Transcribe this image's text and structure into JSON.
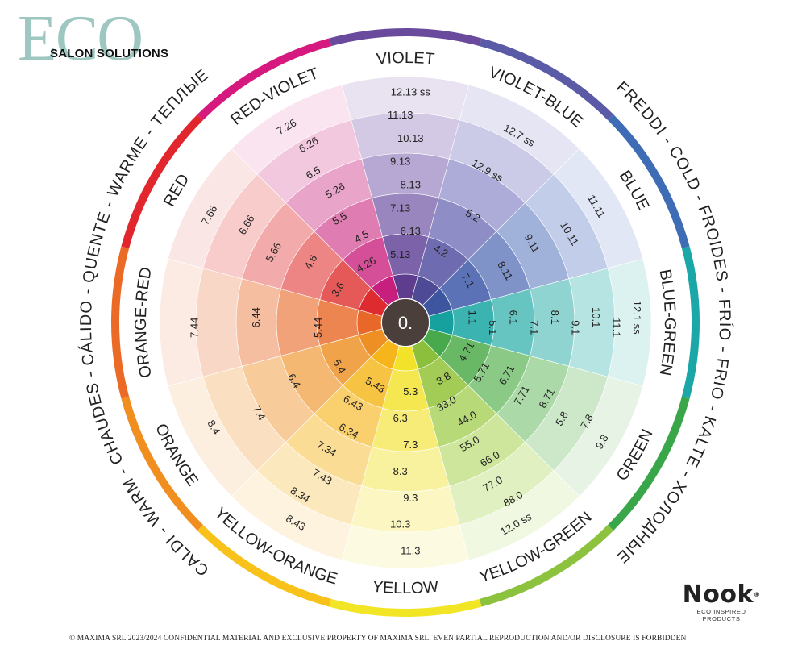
{
  "logo": {
    "main": "ECO",
    "sub": "SALON SOLUTIONS"
  },
  "brand": {
    "name": "Nook",
    "reg": "®",
    "tagline": "ECO INSPIRED PRODUCTS"
  },
  "footer": "© MAXIMA SRL  2023/2024  CONFIDENTIAL MATERIAL AND EXCLUSIVE PROPERTY OF MAXIMA SRL. EVEN PARTIAL REPRODUCTION AND/OR DISCLOSURE IS FORBIDDEN",
  "center": {
    "label": "0.",
    "color": "#4a3f3a"
  },
  "outer_text": {
    "cold": "FREDDI - COLD - FROIDES - FRÍO - FRIO - KALTE - ХОЛОДНЫЕ",
    "warm": "CALDI - WARM - CHAUDES - CÁLIDO - QUENTE - WARME - ТЕПЛЫЕ"
  },
  "segments": [
    {
      "label": "VIOLET",
      "ring": "#6a4a9c",
      "fills": [
        "#5e3d8f",
        "#7c62a8",
        "#9a86bf",
        "#b6a8d2",
        "#d3c9e4",
        "#e8e2f1"
      ],
      "codes": [
        [
          "5.13",
          "6.13",
          "7.13",
          "8.13",
          "9.13",
          "10.13",
          "11.13",
          "12.13 ss"
        ]
      ]
    },
    {
      "label": "VIOLET-BLUE",
      "ring": "#5a5aa6",
      "fills": [
        "#4e4a96",
        "#6e6bb0",
        "#8f8dc5",
        "#adacd8",
        "#cbcae7",
        "#e6e5f3"
      ],
      "codes": [
        [
          "4.2",
          "5.2",
          "12.9 ss",
          "12.7 ss"
        ]
      ]
    },
    {
      "label": "BLUE",
      "ring": "#3f6db5",
      "fills": [
        "#3e55a0",
        "#5b73b6",
        "#7f93c9",
        "#a0b1da",
        "#c2cde9",
        "#e2e7f5"
      ],
      "codes": [
        [
          "7.1",
          "8.11",
          "9.11",
          "10.11",
          "11.11"
        ]
      ]
    },
    {
      "label": "BLUE-GREEN",
      "ring": "#1ba6a8",
      "fills": [
        "#16a09e",
        "#3bb3b0",
        "#66c4c1",
        "#8fd4d1",
        "#b6e4e2",
        "#dcf2f1"
      ],
      "codes": [
        [
          "1.1",
          "5.1",
          "6.1",
          "7.1",
          "8.1",
          "9.1",
          "10.1",
          "11.1",
          "12.1 ss"
        ]
      ]
    },
    {
      "label": "GREEN",
      "ring": "#3aa64a",
      "fills": [
        "#48a84c",
        "#68b866",
        "#8bc987",
        "#acd9a8",
        "#cce8c9",
        "#e7f4e5"
      ],
      "codes": [
        [
          "4.71",
          "5.71",
          "6.71",
          "7.71",
          "8.71",
          "5.8",
          "7.8",
          "9.8"
        ]
      ]
    },
    {
      "label": "YELLOW-GREEN",
      "ring": "#8dc23f",
      "fills": [
        "#8cbf3c",
        "#a2cc55",
        "#b8d978",
        "#cde69c",
        "#e0f0c1",
        "#f0f8e2"
      ],
      "codes": [
        [
          "3.8",
          "33.0",
          "44.0",
          "55.0",
          "66.0",
          "77.0",
          "88.0",
          "12.0 ss"
        ]
      ]
    },
    {
      "label": "YELLOW",
      "ring": "#f1e526",
      "fills": [
        "#f2e22a",
        "#f4e74f",
        "#f6ec77",
        "#f8f19d",
        "#fbf6c2",
        "#fdfae2"
      ],
      "codes": [
        [
          "5.3",
          "6.3",
          "7.3",
          "8.3",
          "9.3",
          "10.3",
          "11.3"
        ]
      ]
    },
    {
      "label": "YELLOW-ORANGE",
      "ring": "#f8c21a",
      "fills": [
        "#f6b51a",
        "#f7c342",
        "#f9d06d",
        "#fadc95",
        "#fce8bd",
        "#fdf3df"
      ],
      "codes": [
        [
          "5.43",
          "6.43",
          "6.34",
          "7.34",
          "7.43",
          "8.34",
          "8.43"
        ]
      ]
    },
    {
      "label": "ORANGE",
      "ring": "#f08e1f",
      "fills": [
        "#ee8f24",
        "#f1a34a",
        "#f4b872",
        "#f7cc9a",
        "#fadfc1",
        "#fcefe0"
      ],
      "codes": [
        [
          "5.4",
          "6.4",
          "7.4",
          "8.4"
        ]
      ]
    },
    {
      "label": "ORANGE-RED",
      "ring": "#eb6a25",
      "fills": [
        "#e8682a",
        "#ed8550",
        "#f1a279",
        "#f5bea1",
        "#f9d7c6",
        "#fcebe3"
      ],
      "codes": [
        [
          "5.44",
          "6.44",
          "7.44"
        ]
      ]
    },
    {
      "label": "RED",
      "ring": "#e2262e",
      "fills": [
        "#dd2b2f",
        "#e55a59",
        "#ec8584",
        "#f2abaa",
        "#f7cccb",
        "#fbe6e6"
      ],
      "codes": [
        [
          "3.6",
          "4.6",
          "5.66",
          "6.66",
          "7.66"
        ]
      ]
    },
    {
      "label": "RED-VIOLET",
      "ring": "#d6197f",
      "fills": [
        "#c71f7e",
        "#d44f97",
        "#df7cb1",
        "#e9a4c9",
        "#f2c8df",
        "#f9e4ef"
      ],
      "codes": [
        [
          "4.26",
          "4.5",
          "5.5",
          "5.26",
          "6.5",
          "6.26",
          "7.26"
        ]
      ]
    }
  ]
}
